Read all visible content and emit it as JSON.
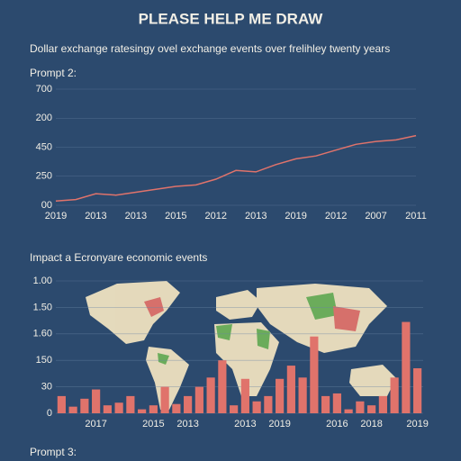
{
  "header": {
    "title": "PLEASE HELP ME DRAW",
    "subtitle": "Dollar exchange ratesingy ovel exchange events over frelihley twenty years"
  },
  "footer": {
    "text": "Prompt 3:"
  },
  "chart_data": [
    {
      "type": "line",
      "title": "Prompt 2:",
      "categories": [
        "2019",
        null,
        "2013",
        null,
        "2013",
        null,
        "2015",
        null,
        "2012",
        null,
        "2013",
        null,
        "2019",
        null,
        "2012",
        null,
        "2007",
        null,
        "2011"
      ],
      "series": [
        {
          "color": "#e0736b",
          "values": [
            0.15,
            0.2,
            0.4,
            0.35,
            0.45,
            0.55,
            0.65,
            0.7,
            0.9,
            1.2,
            1.15,
            1.4,
            1.6,
            1.7,
            1.9,
            2.1,
            2.2,
            2.25,
            2.4
          ]
        }
      ],
      "ylim": [
        0,
        4
      ],
      "yticks": [
        {
          "value": 0,
          "label": "00"
        },
        {
          "value": 1,
          "label": "250"
        },
        {
          "value": 2,
          "label": "450"
        },
        {
          "value": 3,
          "label": "200"
        },
        {
          "value": 4,
          "label": "700"
        }
      ],
      "grid": true
    },
    {
      "type": "bar",
      "title": "Impact a Ecronyare economic events",
      "categories": [
        null,
        null,
        null,
        "2017",
        null,
        null,
        null,
        null,
        "2015",
        null,
        null,
        "2013",
        null,
        null,
        null,
        null,
        "2013",
        null,
        null,
        "2019",
        null,
        null,
        null,
        null,
        "2016",
        null,
        null,
        "2018",
        null,
        null,
        null,
        "2019"
      ],
      "values": [
        0.65,
        0.25,
        0.55,
        0.9,
        0.3,
        0.4,
        0.65,
        0.15,
        0.3,
        1.0,
        0.35,
        0.65,
        1.0,
        1.35,
        2.0,
        0.3,
        1.3,
        0.45,
        0.65,
        1.3,
        1.8,
        1.35,
        2.9,
        0.65,
        0.75,
        0.15,
        0.45,
        0.3,
        0.65,
        1.35,
        3.45,
        1.7
      ],
      "color": "#e0736b",
      "ylim": [
        0,
        5
      ],
      "yticks": [
        {
          "value": 0,
          "label": "0"
        },
        {
          "value": 1,
          "label": "30"
        },
        {
          "value": 2,
          "label": "150"
        },
        {
          "value": 3,
          "label": "1.60"
        },
        {
          "value": 4,
          "label": "1.50"
        },
        {
          "value": 5,
          "label": "1.00"
        }
      ],
      "grid": true
    }
  ]
}
